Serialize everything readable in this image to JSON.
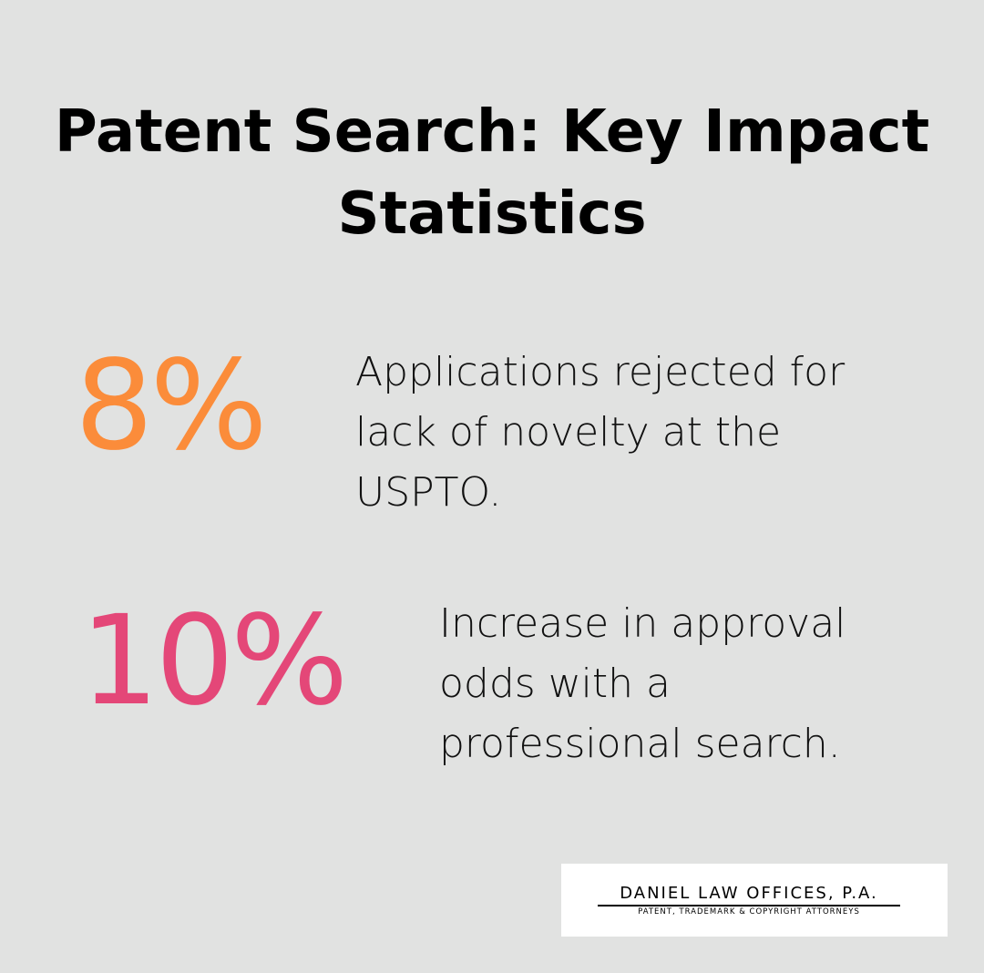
{
  "header": {
    "title": "Patent Search: Key Impact Statistics"
  },
  "stats": [
    {
      "value": "8%",
      "text": "Applications rejected for lack of novelty at the USPTO."
    },
    {
      "value": "10%",
      "text": "Increase in approval odds with a professional search."
    }
  ],
  "logo": {
    "name": "DANIEL LAW OFFICES, P.A.",
    "tagline": "PATENT, TRADEMARK & COPYRIGHT ATTORNEYS"
  }
}
